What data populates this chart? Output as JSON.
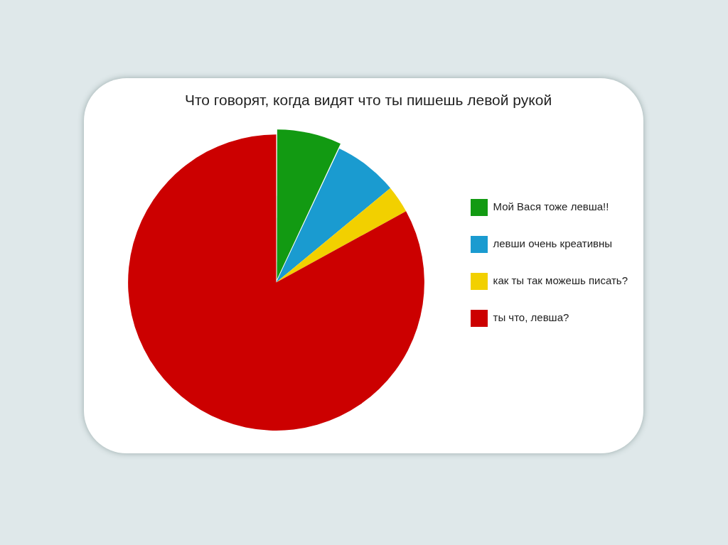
{
  "chart_data": {
    "type": "pie",
    "title": "Что говорят, когда видят что ты пишешь левой рукой",
    "categories": [
      "Мой Вася тоже левша!!",
      "левши очень креативны",
      "как ты так можешь писать?",
      "ты что, левша?"
    ],
    "values": [
      7,
      7,
      3,
      83
    ],
    "colors": [
      "#129a12",
      "#1a9bd0",
      "#f2d000",
      "#cc0000"
    ],
    "legend": "right"
  }
}
